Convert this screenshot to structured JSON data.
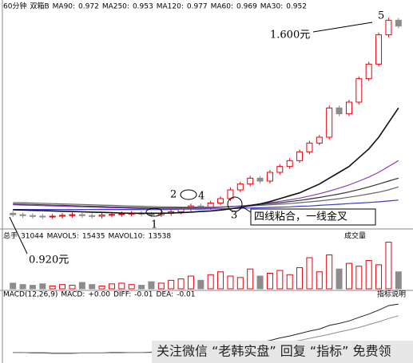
{
  "chart_data": [
    {
      "type": "candlestick",
      "period": "60分钟",
      "stock": "双箱B",
      "up_color": "#e8000b",
      "down_color": "#8c8c8c",
      "ylim": [
        0.9,
        1.62
      ],
      "open": [
        0.94,
        0.935,
        0.932,
        0.93,
        0.928,
        0.93,
        0.933,
        0.935,
        0.932,
        0.93,
        0.934,
        0.936,
        0.938,
        0.94,
        0.937,
        0.935,
        0.94,
        0.945,
        0.955,
        0.965,
        0.96,
        0.975,
        0.99,
        1.02,
        1.04,
        1.06,
        1.05,
        1.08,
        1.1,
        1.12,
        1.15,
        1.18,
        1.2,
        1.3,
        1.28,
        1.32,
        1.4,
        1.45,
        1.55,
        1.6
      ],
      "high": [
        0.948,
        0.943,
        0.94,
        0.938,
        0.938,
        0.941,
        0.943,
        0.943,
        0.94,
        0.942,
        0.944,
        0.946,
        0.948,
        0.948,
        0.945,
        0.948,
        0.953,
        0.963,
        0.973,
        0.973,
        0.983,
        0.998,
        1.028,
        1.048,
        1.068,
        1.068,
        1.088,
        1.108,
        1.128,
        1.158,
        1.188,
        1.208,
        1.308,
        1.308,
        1.328,
        1.408,
        1.458,
        1.558,
        1.608,
        1.608
      ],
      "low": [
        0.927,
        0.924,
        0.922,
        0.92,
        0.92,
        0.922,
        0.925,
        0.924,
        0.922,
        0.922,
        0.926,
        0.928,
        0.93,
        0.929,
        0.927,
        0.927,
        0.932,
        0.937,
        0.947,
        0.952,
        0.952,
        0.967,
        0.982,
        1.012,
        1.032,
        1.042,
        1.042,
        1.072,
        1.092,
        1.112,
        1.142,
        1.172,
        1.192,
        1.272,
        1.272,
        1.312,
        1.392,
        1.442,
        1.542,
        1.572
      ],
      "close": [
        0.935,
        0.932,
        0.93,
        0.928,
        0.93,
        0.933,
        0.935,
        0.932,
        0.93,
        0.934,
        0.936,
        0.938,
        0.94,
        0.937,
        0.935,
        0.94,
        0.945,
        0.955,
        0.965,
        0.96,
        0.975,
        0.99,
        1.02,
        1.04,
        1.06,
        1.05,
        1.08,
        1.1,
        1.12,
        1.15,
        1.18,
        1.2,
        1.3,
        1.28,
        1.32,
        1.4,
        1.45,
        1.55,
        1.6,
        1.58
      ],
      "series": [
        {
          "name": "MA90:",
          "last": 0.972,
          "color": "#333333",
          "values": [
            0.972,
            0.971,
            0.97,
            0.969,
            0.968,
            0.967,
            0.966,
            0.965,
            0.964,
            0.963,
            0.962,
            0.961,
            0.96,
            0.959,
            0.958,
            0.958,
            0.958,
            0.958,
            0.958,
            0.959,
            0.96,
            0.961,
            0.963,
            0.965,
            0.967,
            0.97,
            0.973,
            0.976,
            0.98,
            0.984,
            0.989,
            0.994,
            1.0,
            1.006,
            1.013,
            1.021,
            1.03,
            1.04,
            1.05,
            1.06
          ]
        },
        {
          "name": "MA250:",
          "last": 0.953,
          "color": "#3a3ad0",
          "values": [
            0.953,
            0.953,
            0.953,
            0.953,
            0.953,
            0.953,
            0.953,
            0.953,
            0.953,
            0.953,
            0.953,
            0.953,
            0.953,
            0.953,
            0.953,
            0.953,
            0.953,
            0.954,
            0.954,
            0.954,
            0.955,
            0.955,
            0.956,
            0.957,
            0.958,
            0.959,
            0.96,
            0.961,
            0.962,
            0.964,
            0.965,
            0.967,
            0.969,
            0.971,
            0.973,
            0.975,
            0.977,
            0.979,
            0.982,
            0.985
          ]
        },
        {
          "name": "MA120:",
          "last": 0.977,
          "color": "#666666",
          "values": [
            0.977,
            0.976,
            0.975,
            0.974,
            0.973,
            0.972,
            0.971,
            0.97,
            0.969,
            0.968,
            0.967,
            0.966,
            0.965,
            0.964,
            0.963,
            0.962,
            0.962,
            0.961,
            0.961,
            0.961,
            0.961,
            0.962,
            0.963,
            0.964,
            0.965,
            0.967,
            0.969,
            0.971,
            0.973,
            0.976,
            0.979,
            0.982,
            0.986,
            0.99,
            0.995,
            1.0,
            1.006,
            1.012,
            1.02,
            1.03
          ]
        },
        {
          "name": "MA60:",
          "last": 0.969,
          "color": "#8b3fbf",
          "values": [
            0.969,
            0.968,
            0.967,
            0.966,
            0.965,
            0.964,
            0.963,
            0.962,
            0.961,
            0.96,
            0.959,
            0.958,
            0.957,
            0.956,
            0.955,
            0.955,
            0.955,
            0.955,
            0.956,
            0.957,
            0.958,
            0.96,
            0.962,
            0.965,
            0.968,
            0.972,
            0.976,
            0.981,
            0.986,
            0.992,
            0.999,
            1.007,
            1.016,
            1.026,
            1.037,
            1.05,
            1.064,
            1.08,
            1.1,
            1.12
          ]
        },
        {
          "name": "MA30:",
          "last": 0.952,
          "color": "#111111",
          "values": [
            0.952,
            0.951,
            0.95,
            0.949,
            0.948,
            0.947,
            0.946,
            0.945,
            0.944,
            0.943,
            0.942,
            0.941,
            0.94,
            0.94,
            0.94,
            0.94,
            0.941,
            0.942,
            0.944,
            0.946,
            0.948,
            0.951,
            0.955,
            0.96,
            0.966,
            0.972,
            0.98,
            0.99,
            1.0,
            1.01,
            1.025,
            1.04,
            1.06,
            1.08,
            1.1,
            1.13,
            1.16,
            1.2,
            1.25,
            1.3
          ]
        }
      ],
      "annotations": [
        "1.600元",
        "0.920元",
        "四线粘合，一线金叉",
        "1",
        "2",
        "3",
        "4",
        "5"
      ]
    },
    {
      "type": "bar",
      "panel_label": "成交量",
      "ylim": [
        0,
        35000
      ],
      "items": [
        {
          "name": "总手",
          "value": 31044
        },
        {
          "name": "MAVOL5:",
          "value": 15435
        },
        {
          "name": "MAVOL10:",
          "value": 13538
        }
      ],
      "values": [
        4000,
        3000,
        2500,
        3500,
        2000,
        3000,
        2500,
        4500,
        3000,
        2000,
        3500,
        4000,
        3000,
        2500,
        5000,
        4000,
        6000,
        7000,
        9000,
        6000,
        10000,
        12000,
        9000,
        8000,
        14000,
        9000,
        11000,
        13000,
        10000,
        15000,
        22000,
        12000,
        24000,
        14000,
        18000,
        16000,
        20000,
        17000,
        33000,
        12000
      ]
    },
    {
      "type": "line",
      "title": "MACD(12,26,9)",
      "panel_label": "指标说明",
      "ylim": [
        -0.03,
        0.12
      ],
      "items": [
        {
          "name": "MACD:",
          "value": {
            "value": 0,
            "label": "+0.00"
          }
        }
      ],
      "series": [
        {
          "name": "DIFF:",
          "last": -0.01,
          "color": "#222222",
          "values": [
            -0.01,
            -0.01,
            -0.011,
            -0.011,
            -0.012,
            -0.012,
            -0.012,
            -0.011,
            -0.011,
            -0.011,
            -0.01,
            -0.01,
            -0.01,
            -0.01,
            -0.009,
            -0.009,
            -0.008,
            -0.007,
            -0.005,
            -0.004,
            -0.002,
            0.0,
            0.003,
            0.007,
            0.012,
            0.015,
            0.02,
            0.026,
            0.031,
            0.037,
            0.043,
            0.048,
            0.057,
            0.062,
            0.068,
            0.077,
            0.085,
            0.095,
            0.106,
            0.11
          ]
        },
        {
          "name": "DEA:",
          "last": -0.01,
          "color": "#8c8c8c",
          "values": [
            -0.01,
            -0.01,
            -0.01,
            -0.01,
            -0.011,
            -0.011,
            -0.011,
            -0.011,
            -0.011,
            -0.011,
            -0.011,
            -0.011,
            -0.01,
            -0.01,
            -0.01,
            -0.01,
            -0.01,
            -0.009,
            -0.008,
            -0.007,
            -0.006,
            -0.005,
            -0.003,
            -0.001,
            0.002,
            0.005,
            0.008,
            0.012,
            0.016,
            0.02,
            0.025,
            0.03,
            0.035,
            0.041,
            0.046,
            0.052,
            0.059,
            0.066,
            0.074,
            0.081
          ]
        }
      ]
    }
  ],
  "watermark": "关注微信 “老韩实盘” 回复 “指标” 免费领"
}
